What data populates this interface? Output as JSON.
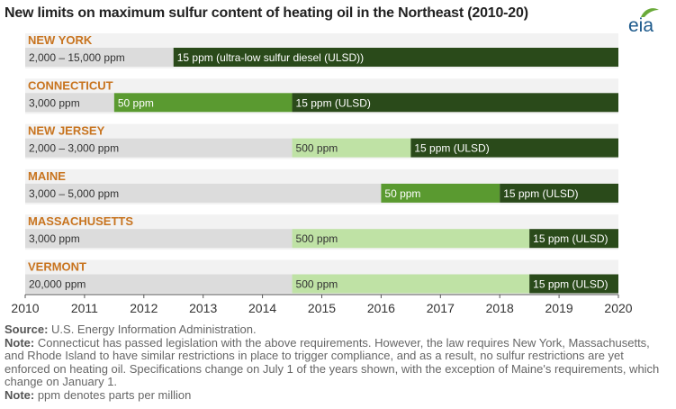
{
  "title": "New limits on maximum sulfur content of heating oil in the Northeast (2010-20)",
  "logo_text": "eia",
  "colors": {
    "band_bg": "#f2f2f2",
    "base_bar": "#dcdcdc",
    "dark_green": "#2a4a1a",
    "mid_green": "#5a9a30",
    "light_green": "#bfe2a5",
    "state_label": "#c8741f",
    "logo_blue": "#1d5a8c",
    "logo_green": "#6aaa3a"
  },
  "chart_data": {
    "type": "timeline",
    "title": "New limits on maximum sulfur content of heating oil in the Northeast (2010-20)",
    "xlim": [
      2010,
      2020
    ],
    "x_ticks": [
      2010,
      2011,
      2012,
      2013,
      2014,
      2015,
      2016,
      2017,
      2018,
      2019,
      2020
    ],
    "rows": [
      {
        "state": "NEW YORK",
        "segments": [
          {
            "start": 2010,
            "end": 2012.5,
            "label": "2,000 – 15,000 ppm",
            "level": "base"
          },
          {
            "start": 2012.5,
            "end": 2020,
            "label": "15 ppm (ultra-low sulfur diesel (ULSD))",
            "level": "ulsd"
          }
        ]
      },
      {
        "state": "CONNECTICUT",
        "segments": [
          {
            "start": 2010,
            "end": 2011.5,
            "label": "3,000 ppm",
            "level": "base"
          },
          {
            "start": 2011.5,
            "end": 2014.5,
            "label": "50 ppm",
            "level": "mid"
          },
          {
            "start": 2014.5,
            "end": 2020,
            "label": "15 ppm (ULSD)",
            "level": "ulsd"
          }
        ]
      },
      {
        "state": "NEW JERSEY",
        "segments": [
          {
            "start": 2010,
            "end": 2014.5,
            "label": "2,000 – 3,000 ppm",
            "level": "base"
          },
          {
            "start": 2014.5,
            "end": 2016.5,
            "label": "500 ppm",
            "level": "light"
          },
          {
            "start": 2016.5,
            "end": 2020,
            "label": "15 ppm (ULSD)",
            "level": "ulsd"
          }
        ]
      },
      {
        "state": "MAINE",
        "segments": [
          {
            "start": 2010,
            "end": 2016,
            "label": "3,000 – 5,000 ppm",
            "level": "base"
          },
          {
            "start": 2016,
            "end": 2018,
            "label": "50 ppm",
            "level": "mid"
          },
          {
            "start": 2018,
            "end": 2020,
            "label": "15 ppm (ULSD)",
            "level": "ulsd"
          }
        ]
      },
      {
        "state": "MASSACHUSETTS",
        "segments": [
          {
            "start": 2010,
            "end": 2014.5,
            "label": "3,000 ppm",
            "level": "base"
          },
          {
            "start": 2014.5,
            "end": 2018.5,
            "label": "500 ppm",
            "level": "light"
          },
          {
            "start": 2018.5,
            "end": 2020,
            "label": "15 ppm (ULSD)",
            "level": "ulsd"
          }
        ]
      },
      {
        "state": "VERMONT",
        "segments": [
          {
            "start": 2010,
            "end": 2014.5,
            "label": "20,000 ppm",
            "level": "base"
          },
          {
            "start": 2014.5,
            "end": 2018.5,
            "label": "500 ppm",
            "level": "light"
          },
          {
            "start": 2018.5,
            "end": 2020,
            "label": "15 ppm (ULSD)",
            "level": "ulsd"
          }
        ]
      }
    ]
  },
  "notes": {
    "source_label": "Source:",
    "source_text": " U.S. Energy Information Administration.",
    "note1_label": "Note:",
    "note1_text": " Connecticut has passed legislation with the above requirements. However, the law requires New York, Massachusetts, and Rhode Island to have similar restrictions in place to trigger compliance, and as a result, no sulfur restrictions are yet enforced on heating oil. Specifications change on July 1 of the years shown, with the exception of Maine's requirements, which change on January 1.",
    "note2_label": "Note:",
    "note2_text": " ppm denotes parts per million"
  }
}
